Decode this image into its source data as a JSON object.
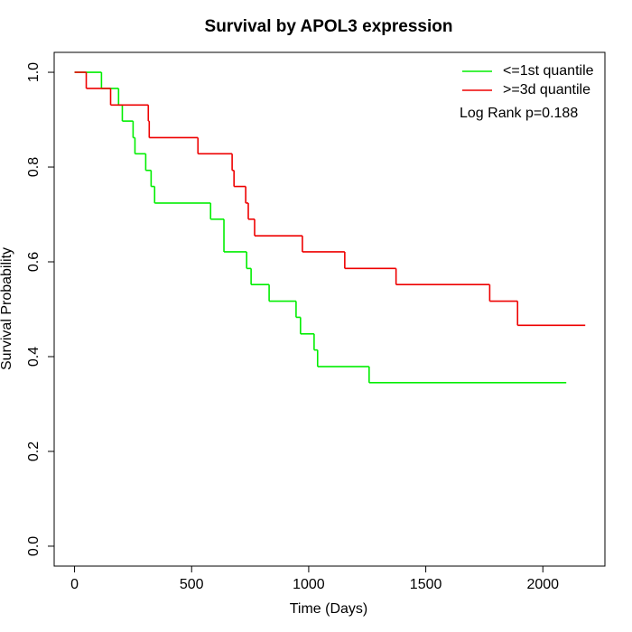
{
  "chart_data": {
    "type": "step",
    "title": "Survival by APOL3 expression",
    "x_label": "Time (Days)",
    "y_label": "Survival Probability",
    "annotation": "Log Rank p=0.188",
    "legend": "top-right",
    "xlim": [
      -87,
      2265
    ],
    "ylim": [
      -0.042,
      1.042
    ],
    "xticks": [
      0,
      500,
      1000,
      1500,
      2000
    ],
    "yticks": [
      {
        "value": 0,
        "label": "0.0"
      },
      0.2,
      0.4,
      0.6,
      0.8,
      {
        "value": 1,
        "label": "1.0"
      }
    ],
    "series": [
      {
        "name": "<=1st quantile",
        "color": "#00ee00",
        "x": [
          0,
          115,
          188,
          204,
          250,
          258,
          304,
          327,
          342,
          581,
          638,
          735,
          754,
          831,
          946,
          965,
          1023,
          1038,
          1258,
          2100
        ],
        "values": [
          1,
          0.966,
          0.931,
          0.897,
          0.862,
          0.828,
          0.793,
          0.759,
          0.724,
          0.69,
          0.621,
          0.586,
          0.552,
          0.517,
          0.483,
          0.448,
          0.414,
          0.379,
          0.345,
          0.345
        ]
      },
      {
        "name": ">=3d quantile",
        "color": "#ee0000",
        "x": [
          0,
          50,
          154,
          315,
          319,
          527,
          673,
          681,
          731,
          742,
          769,
          973,
          1154,
          1373,
          1773,
          1892,
          2181
        ],
        "values": [
          1,
          0.966,
          0.931,
          0.897,
          0.862,
          0.828,
          0.793,
          0.759,
          0.724,
          0.69,
          0.655,
          0.621,
          0.586,
          0.552,
          0.517,
          0.466,
          0.466
        ]
      }
    ]
  }
}
